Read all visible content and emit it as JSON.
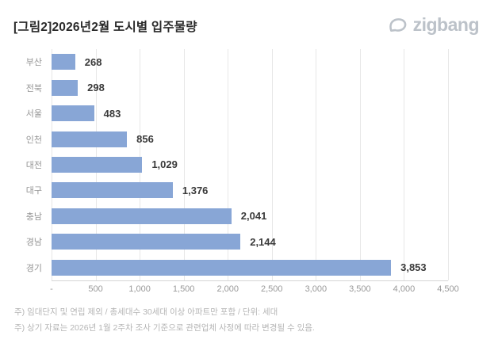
{
  "header": {
    "title": "[그림2]2026년2월 도시별 입주물량",
    "logo_text": "zigbang"
  },
  "chart_data": {
    "type": "bar",
    "orientation": "horizontal",
    "title": "[그림2]2026년2월 도시별 입주물량",
    "categories": [
      "부산",
      "전북",
      "서울",
      "인천",
      "대전",
      "대구",
      "충남",
      "경남",
      "경기"
    ],
    "values": [
      268,
      298,
      483,
      856,
      1029,
      1376,
      2041,
      2144,
      3853
    ],
    "value_labels": [
      "268",
      "298",
      "483",
      "856",
      "1,029",
      "1,376",
      "2,041",
      "2,144",
      "3,853"
    ],
    "xlim": [
      0,
      4500
    ],
    "x_ticks": [
      0,
      500,
      1000,
      1500,
      2000,
      2500,
      3000,
      3500,
      4000,
      4500
    ],
    "x_tick_labels": [
      "-",
      "500",
      "1,000",
      "1,500",
      "2,000",
      "2,500",
      "3,000",
      "3,500",
      "4,000",
      "4,500"
    ],
    "grid": true,
    "legend": "none",
    "unit": "세대",
    "bar_color": "#88a6d6"
  },
  "footnotes": [
    "주) 임대단지 및 연립 제외 / 총세대수 30세대 이상 아파트만 포함 / 단위: 세대",
    "주) 상기 자료는 2026년 1월 2주차 조사 기준으로 관련업체 사정에 따라 변경될 수 있음."
  ],
  "colors": {
    "bar": "#88a6d6",
    "gridline": "#e7e7e7",
    "axis_line": "#d6d6d6",
    "value_label": "#3a3a3a",
    "category_label": "#949494",
    "footnote": "#b5b5b5",
    "title": "#2a2a2a",
    "logo": "#bcc2c9"
  }
}
